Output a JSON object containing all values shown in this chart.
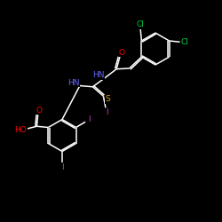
{
  "bg_color": "#000000",
  "bond_color": "#ffffff",
  "atom_colors": {
    "O": "#ff0000",
    "N": "#6666ff",
    "S": "#ddaa00",
    "I": "#bb44bb",
    "Cl": "#00cc44",
    "C": "#ffffff",
    "H": "#ffffff"
  },
  "figsize": [
    2.5,
    2.5
  ],
  "dpi": 100,
  "xlim": [
    0,
    10
  ],
  "ylim": [
    0,
    10
  ]
}
